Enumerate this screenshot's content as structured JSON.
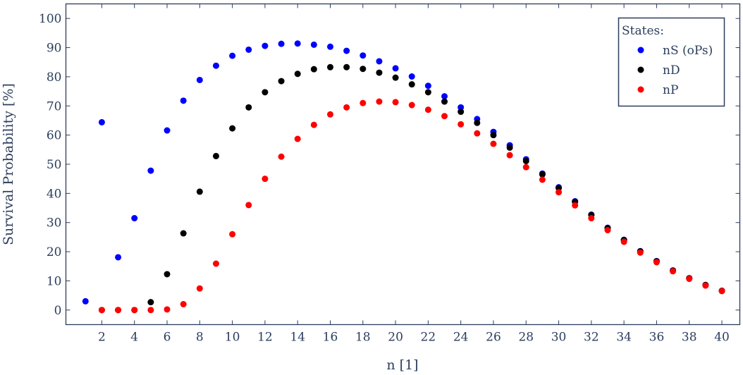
{
  "chart_data": {
    "type": "scatter",
    "title": "",
    "xlabel": "n [1]",
    "ylabel": "Survival Probability [%]",
    "xlim": [
      -0.2,
      41.1
    ],
    "ylim": [
      -5,
      105
    ],
    "xticks": [
      2,
      4,
      6,
      8,
      10,
      12,
      14,
      16,
      18,
      20,
      22,
      24,
      26,
      28,
      30,
      32,
      34,
      36,
      38,
      40
    ],
    "yticks": [
      0,
      10,
      20,
      30,
      40,
      50,
      60,
      70,
      80,
      90,
      100
    ],
    "grid": false,
    "legend": {
      "title": "States:",
      "placement": "top-right"
    },
    "series": [
      {
        "name": "nS (oPs)",
        "color": "#0000ff",
        "x": [
          1,
          2,
          3,
          4,
          5,
          6,
          7,
          8,
          9,
          10,
          11,
          12,
          13,
          14,
          15,
          16,
          17,
          18,
          19,
          20,
          21,
          22,
          23,
          24,
          25,
          26,
          27,
          28,
          29,
          30,
          31,
          32,
          33,
          34,
          35,
          36,
          37,
          38,
          39,
          40
        ],
        "y": [
          3.0,
          64.4,
          18.1,
          31.5,
          47.8,
          61.6,
          71.8,
          78.9,
          83.8,
          87.2,
          89.3,
          90.6,
          91.3,
          91.4,
          91.0,
          90.3,
          88.9,
          87.3,
          85.3,
          82.9,
          80.1,
          76.9,
          73.3,
          69.5,
          65.5,
          61.1,
          56.5,
          51.7,
          46.8,
          42.1,
          37.3,
          32.7,
          28.2,
          24.1,
          20.2,
          16.8,
          13.6,
          10.9,
          8.6,
          6.6
        ]
      },
      {
        "name": "nD",
        "color": "#000000",
        "x": [
          2,
          3,
          4,
          5,
          6,
          7,
          8,
          9,
          10,
          11,
          12,
          13,
          14,
          15,
          16,
          17,
          18,
          19,
          20,
          21,
          22,
          23,
          24,
          25,
          26,
          27,
          28,
          29,
          30,
          31,
          32,
          33,
          34,
          35,
          36,
          37,
          38,
          39,
          40
        ],
        "y": [
          0.0,
          0.0,
          0.0,
          2.7,
          12.3,
          26.3,
          40.6,
          52.8,
          62.3,
          69.5,
          74.7,
          78.5,
          81.0,
          82.6,
          83.3,
          83.3,
          82.7,
          81.4,
          79.7,
          77.4,
          74.7,
          71.5,
          68.0,
          64.2,
          60.0,
          55.7,
          51.1,
          46.5,
          41.8,
          37.1,
          32.6,
          28.1,
          24.0,
          20.1,
          16.7,
          13.5,
          10.9,
          8.6,
          6.6
        ]
      },
      {
        "name": "nP",
        "color": "#ff0000",
        "x": [
          2,
          3,
          4,
          5,
          6,
          7,
          8,
          9,
          10,
          11,
          12,
          13,
          14,
          15,
          16,
          17,
          18,
          19,
          20,
          21,
          22,
          23,
          24,
          25,
          26,
          27,
          28,
          29,
          30,
          31,
          32,
          33,
          34,
          35,
          36,
          37,
          38,
          39,
          40
        ],
        "y": [
          0.0,
          0.0,
          0.0,
          0.0,
          0.2,
          2.0,
          7.4,
          15.9,
          26.0,
          36.0,
          45.0,
          52.6,
          58.7,
          63.5,
          67.1,
          69.5,
          71.0,
          71.5,
          71.3,
          70.3,
          68.7,
          66.5,
          63.7,
          60.6,
          57.0,
          53.1,
          49.0,
          44.7,
          40.4,
          35.9,
          31.5,
          27.4,
          23.4,
          19.7,
          16.4,
          13.3,
          10.7,
          8.4,
          6.5
        ]
      }
    ]
  }
}
